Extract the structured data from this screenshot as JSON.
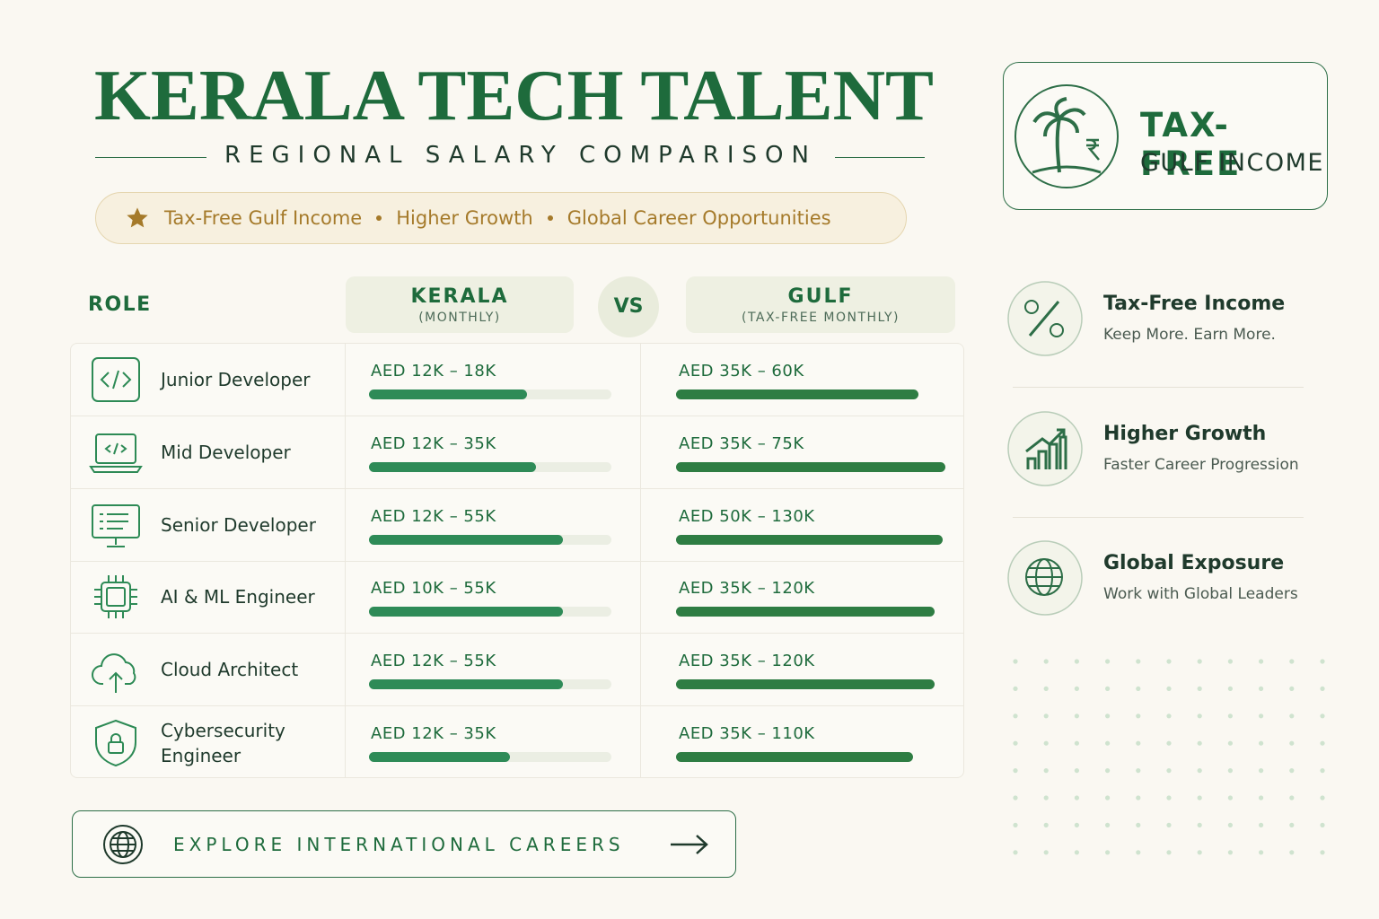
{
  "header": {
    "title": "KERALA TECH TALENT",
    "subtitle": "REGIONAL SALARY COMPARISON",
    "highlights": [
      "Tax-Free Gulf Income",
      "Higher Growth",
      "Global Career Opportunities"
    ]
  },
  "badge": {
    "line1": "TAX-FREE",
    "line2": "GULF INCOME"
  },
  "table": {
    "columns": {
      "role": "ROLE",
      "kerala": "KERALA",
      "kerala_note": "(MONTHLY)",
      "vs": "VS",
      "gulf": "GULF",
      "gulf_note": "(TAX-FREE MONTHLY)"
    },
    "bar_range": [
      0,
      100
    ],
    "rows": [
      {
        "role": "Junior Developer",
        "kerala": "AED 12K – 18K",
        "kerala_bar": 65,
        "gulf": "AED 35K – 60K",
        "gulf_bar": 90
      },
      {
        "role": "Mid Developer",
        "kerala": "AED 12K – 35K",
        "kerala_bar": 69,
        "gulf": "AED 35K – 75K",
        "gulf_bar": 100
      },
      {
        "role": "Senior Developer",
        "kerala": "AED 12K – 55K",
        "kerala_bar": 80,
        "gulf": "AED 50K – 130K",
        "gulf_bar": 99
      },
      {
        "role": "AI & ML Engineer",
        "kerala": "AED 10K – 55K",
        "kerala_bar": 80,
        "gulf": "AED 35K – 120K",
        "gulf_bar": 96
      },
      {
        "role": "Cloud Architect",
        "kerala": "AED 12K – 55K",
        "kerala_bar": 80,
        "gulf": "AED 35K – 120K",
        "gulf_bar": 96
      },
      {
        "role": "Cybersecurity Engineer",
        "kerala": "AED 12K – 35K",
        "kerala_bar": 58,
        "gulf": "AED 35K – 110K",
        "gulf_bar": 88
      }
    ]
  },
  "features": [
    {
      "title": "Tax-Free Income",
      "text": "Keep More. Earn More."
    },
    {
      "title": "Higher Growth",
      "text": "Faster Career Progression"
    },
    {
      "title": "Global Exposure",
      "text": "Work with Global Leaders"
    }
  ],
  "cta": {
    "label": "EXPLORE INTERNATIONAL CAREERS"
  }
}
